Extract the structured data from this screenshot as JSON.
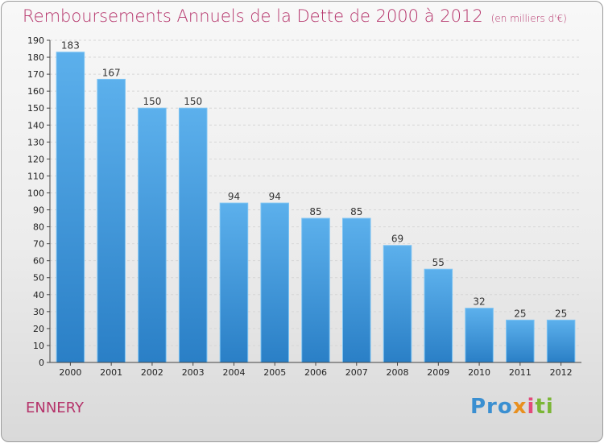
{
  "chart_data": {
    "type": "bar",
    "title": "Remboursements Annuels de la Dette de 2000 à 2012",
    "unit_note": "(en milliers d'€)",
    "categories": [
      "2000",
      "2001",
      "2002",
      "2003",
      "2004",
      "2005",
      "2006",
      "2007",
      "2008",
      "2009",
      "2010",
      "2011",
      "2012"
    ],
    "values": [
      183,
      167,
      150,
      150,
      94,
      94,
      85,
      85,
      69,
      55,
      32,
      25,
      25
    ],
    "ylim": [
      0,
      190
    ],
    "yticks": [
      0,
      10,
      20,
      30,
      40,
      50,
      60,
      70,
      80,
      90,
      100,
      110,
      120,
      130,
      140,
      150,
      160,
      170,
      180,
      190
    ],
    "grid": true,
    "bar_color": "#4da3e3"
  },
  "footer": {
    "town": "ENNERY",
    "logo": {
      "p1": "Pro",
      "p2": "x",
      "p3": "i",
      "p4": "ti"
    }
  }
}
